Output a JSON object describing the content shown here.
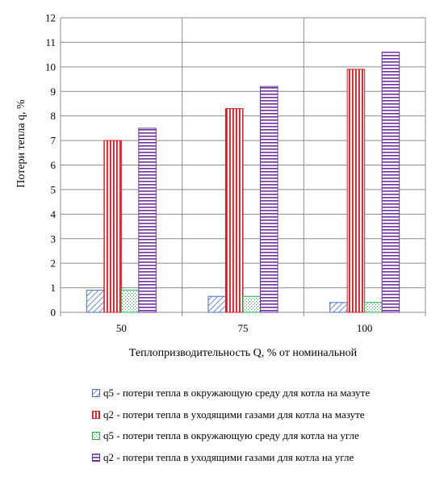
{
  "chart_data": {
    "type": "bar",
    "categories": [
      "50",
      "75",
      "100"
    ],
    "xlabel": "Теплопризводительность Q, % от номинальной",
    "ylabel": "Потери тепла q, %",
    "ylim": [
      0,
      12
    ],
    "yticks": [
      "0",
      "1",
      "2",
      "3",
      "4",
      "5",
      "6",
      "7",
      "8",
      "9",
      "10",
      "11",
      "12"
    ],
    "grid": true,
    "legend_position": "bottom",
    "series": [
      {
        "name": "q5 - потери тепла в окружающую среду для котла на мазуте",
        "values": [
          0.9,
          0.65,
          0.4
        ],
        "color": "#4472c4",
        "pattern": "diagonal"
      },
      {
        "name": "q2 - потери тепла в уходящими газами для котла на мазуте",
        "values": [
          7.0,
          8.3,
          9.9
        ],
        "color": "#e8141b",
        "pattern": "vertical"
      },
      {
        "name": "q5 - потери тепла в окружающую среду для котла на угле",
        "values": [
          0.9,
          0.65,
          0.4
        ],
        "color": "#19b34c",
        "pattern": "dots"
      },
      {
        "name": "q2 - потери тепла в уходящими газами для котла на угле",
        "values": [
          7.5,
          9.2,
          10.6
        ],
        "color": "#7030a0",
        "pattern": "horizontal"
      }
    ]
  }
}
